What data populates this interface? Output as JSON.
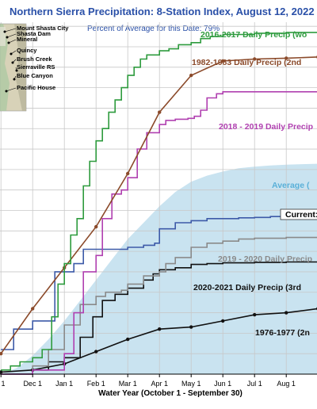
{
  "chart_data": {
    "type": "line",
    "title": "Northern Sierra Precipitation: 8-Station Index, August 12, 2022",
    "subtitle": "Percent of Average for this Date: 79%",
    "xlabel": "Water Year (October 1 - September 30)",
    "x_ticks": [
      "1",
      "Dec 1",
      "Jan 1",
      "Feb 1",
      "Mar 1",
      "Apr 1",
      "May 1",
      "Jun 1",
      "Jul 1",
      "Aug 1"
    ],
    "x_tick_months": [
      1,
      2,
      3,
      4,
      5,
      6,
      7,
      8,
      9,
      10
    ],
    "xlim": [
      0.97,
      10.97
    ],
    "ylim": [
      0,
      86
    ],
    "grid": true,
    "map_stations": [
      "Mount Shasta City",
      "Shasta Dam",
      "Mineral",
      "Quincy",
      "Brush Creek",
      "Sierraville RS",
      "Blue Canyon",
      "Pacific House"
    ],
    "average": {
      "label": "Average (",
      "color": "#c9e3f0",
      "label_color": "#5ab0d8",
      "x": [
        1,
        1.5,
        2,
        2.5,
        3,
        3.5,
        4,
        4.5,
        5,
        5.5,
        6,
        6.5,
        7,
        7.5,
        8,
        8.5,
        9,
        9.5,
        10,
        10.5,
        11
      ],
      "y": [
        0,
        1.5,
        4.5,
        8.5,
        13,
        18,
        23,
        28,
        33,
        37,
        41,
        44.5,
        47,
        48.5,
        49.5,
        50.3,
        50.7,
        51,
        51.2,
        51.3,
        51.4
      ]
    },
    "current": {
      "label": "Current:",
      "color": "#3d5aa8",
      "x": [
        1,
        1.15,
        1.4,
        1.6,
        2,
        2.3,
        2.7,
        3,
        3.3,
        3.6,
        4,
        4.5,
        5,
        5.5,
        5.85,
        6,
        6.5,
        7,
        7.5,
        8,
        8.5,
        9,
        9.5,
        10,
        10.5,
        11
      ],
      "y": [
        6,
        6,
        11,
        11,
        13,
        13,
        25,
        25,
        27,
        30.5,
        30.5,
        30.5,
        31,
        31.5,
        32,
        35.5,
        37,
        37.5,
        38,
        38,
        38.2,
        38.3,
        38.5,
        38.6,
        38.7,
        38.8
      ]
    },
    "series": [
      {
        "name": "2016-2017 Daily Precip (wo",
        "color": "#2e9b3e",
        "x": [
          1,
          1.3,
          1.6,
          2,
          2.3,
          2.6,
          2.8,
          3,
          3.2,
          3.4,
          3.6,
          3.8,
          4,
          4.2,
          4.4,
          4.6,
          4.8,
          5,
          5.2,
          5.4,
          5.6,
          6,
          6.3,
          6.6,
          7,
          7.3,
          7.6,
          8,
          8.5,
          9,
          10,
          11
        ],
        "y": [
          1,
          2,
          3,
          4,
          6,
          14,
          22,
          27,
          34,
          38,
          46,
          52,
          57,
          60,
          64,
          67,
          70,
          73,
          75,
          77,
          78,
          79,
          79.5,
          80.5,
          81,
          82,
          82.5,
          83,
          83,
          83.3,
          83.5,
          83.7
        ],
        "markers": false
      },
      {
        "name": "1982-1983 Daily Precip (2nd",
        "color": "#8b4a2a",
        "x": [
          1,
          2,
          3,
          4,
          5,
          6,
          7,
          8,
          9,
          10,
          11
        ],
        "y": [
          5,
          16,
          26,
          36,
          49,
          64,
          73,
          76.5,
          77,
          77.2,
          77.5
        ],
        "markers": true
      },
      {
        "name": "2018 - 2019 Daily Precip",
        "color": "#b040b0",
        "x": [
          1,
          2,
          3,
          3.3,
          3.6,
          4,
          4.2,
          4.5,
          4.8,
          5,
          5.3,
          5.6,
          6,
          6.2,
          6.5,
          6.9,
          7.1,
          7.3,
          7.5,
          7.8,
          8,
          8.5,
          9,
          10,
          11
        ],
        "y": [
          0,
          1,
          5,
          15,
          25,
          29,
          38,
          44,
          45,
          48,
          55,
          59,
          61,
          62,
          62.3,
          62.5,
          63,
          64.5,
          67.5,
          68.5,
          69,
          69,
          69,
          69,
          69
        ],
        "markers": false
      },
      {
        "name": "2019 - 2020 Daily Precip",
        "color": "#8a8a8a",
        "x": [
          1,
          2,
          2.5,
          3,
          3.5,
          4,
          4.3,
          4.8,
          5,
          5.5,
          6,
          6.2,
          6.5,
          7,
          7.5,
          8,
          8.5,
          9,
          10,
          11
        ],
        "y": [
          0,
          2,
          6,
          12,
          17,
          19,
          20,
          20.5,
          22,
          24,
          25,
          27,
          28.5,
          31,
          32,
          32.5,
          33,
          33.2,
          33.4,
          33.5
        ],
        "markers": false
      },
      {
        "name": "2020-2021 Daily Precip (3rd",
        "color": "#111111",
        "x": [
          1,
          2,
          2.5,
          3,
          3.5,
          3.9,
          4.2,
          4.6,
          5,
          5.5,
          5.8,
          6,
          6.5,
          7,
          7.5,
          8,
          9,
          10,
          11
        ],
        "y": [
          0,
          1,
          3,
          4,
          9,
          14,
          18,
          19.5,
          21,
          23,
          24.5,
          25.5,
          26,
          26.8,
          27,
          27.2,
          27.3,
          27.4,
          27.5
        ],
        "markers": false
      },
      {
        "name": "1976-1977 (2n",
        "color": "#111111",
        "x": [
          1,
          2,
          3,
          4,
          5,
          6,
          7,
          8,
          9,
          10,
          11
        ],
        "y": [
          0.5,
          1,
          2.5,
          5.5,
          8.5,
          11,
          11.5,
          13,
          14.5,
          15,
          16
        ],
        "markers": true
      }
    ]
  }
}
